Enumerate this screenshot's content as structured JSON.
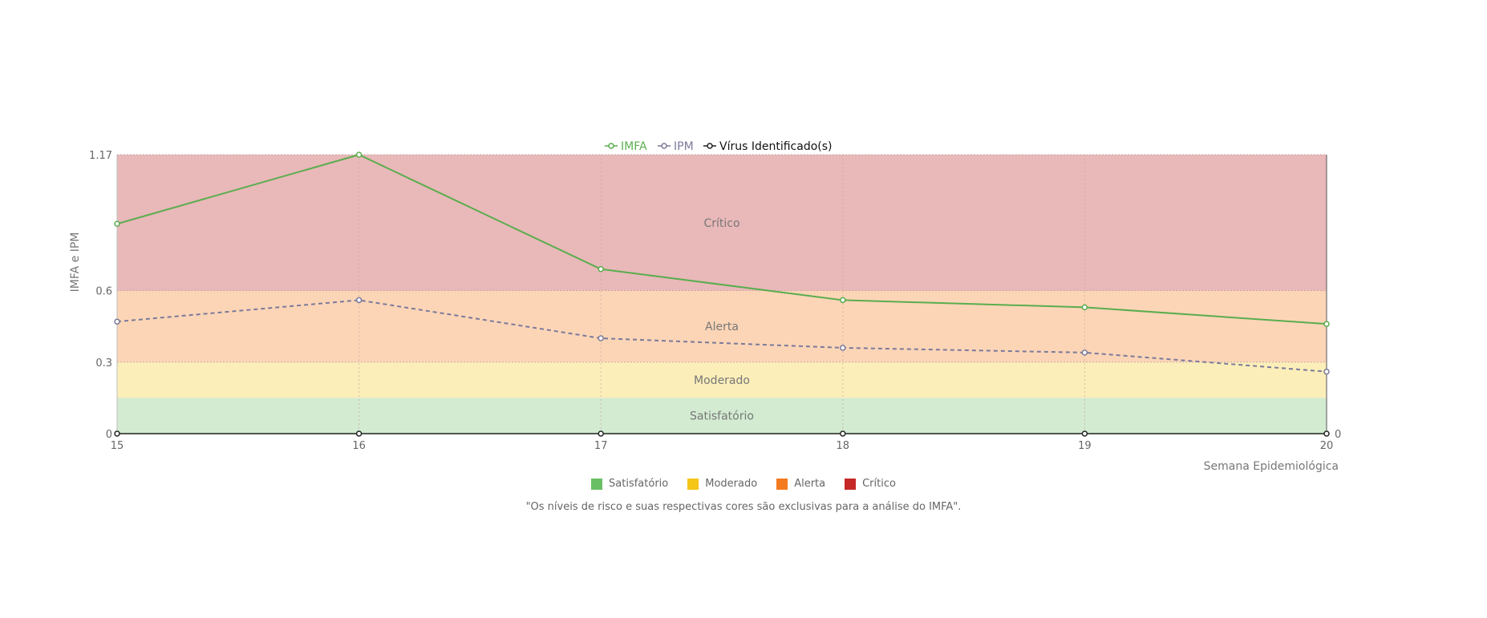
{
  "chart_data": {
    "type": "line",
    "x": [
      15,
      16,
      17,
      18,
      19,
      20
    ],
    "series": [
      {
        "name": "IMFA",
        "values": [
          0.88,
          1.17,
          0.69,
          0.56,
          0.53,
          0.46
        ],
        "color": "#5aad4e",
        "dash": false
      },
      {
        "name": "IPM",
        "values": [
          0.47,
          0.56,
          0.4,
          0.36,
          0.34,
          0.26
        ],
        "color": "#7a7a99",
        "dash": true
      },
      {
        "name": "Vírus Identificado(s)",
        "values": [
          0,
          0,
          0,
          0,
          0,
          0
        ],
        "color": "#222222",
        "dash": false
      }
    ],
    "ylim": [
      0,
      1.17
    ],
    "y_ticks": [
      {
        "value": 0,
        "label": "0"
      },
      {
        "value": 0.3,
        "label": "0.3"
      },
      {
        "value": 0.6,
        "label": "0.6"
      },
      {
        "value": 1.17,
        "label": "1.17"
      }
    ],
    "y2_tick": "0",
    "x_ticks": [
      "15",
      "16",
      "17",
      "18",
      "19",
      "20"
    ],
    "ylabel": "IMFA e IPM",
    "xlabel": "Semana Epidemiológica",
    "risk_bands": [
      {
        "label": "Satisfatório",
        "from": 0,
        "to": 0.15,
        "fill": "#d2ebd1",
        "legend_color": "#6abf65"
      },
      {
        "label": "Moderado",
        "from": 0.15,
        "to": 0.3,
        "fill": "#fbeeb9",
        "legend_color": "#f5c518"
      },
      {
        "label": "Alerta",
        "from": 0.3,
        "to": 0.6,
        "fill": "#fcd5b7",
        "legend_color": "#f47a20"
      },
      {
        "label": "Crítico",
        "from": 0.6,
        "to": 1.17,
        "fill": "#e9b8b9",
        "legend_color": "#c62828"
      }
    ],
    "band_label_values": {
      "Satisfatório": 0.075,
      "Moderado": 0.225,
      "Alerta": 0.45,
      "Crítico": 0.885
    },
    "grid": true,
    "legend_position": "top-center"
  },
  "note": "\"Os níveis de risco e suas respectivas cores são exclusivas para a análise do IMFA\"."
}
